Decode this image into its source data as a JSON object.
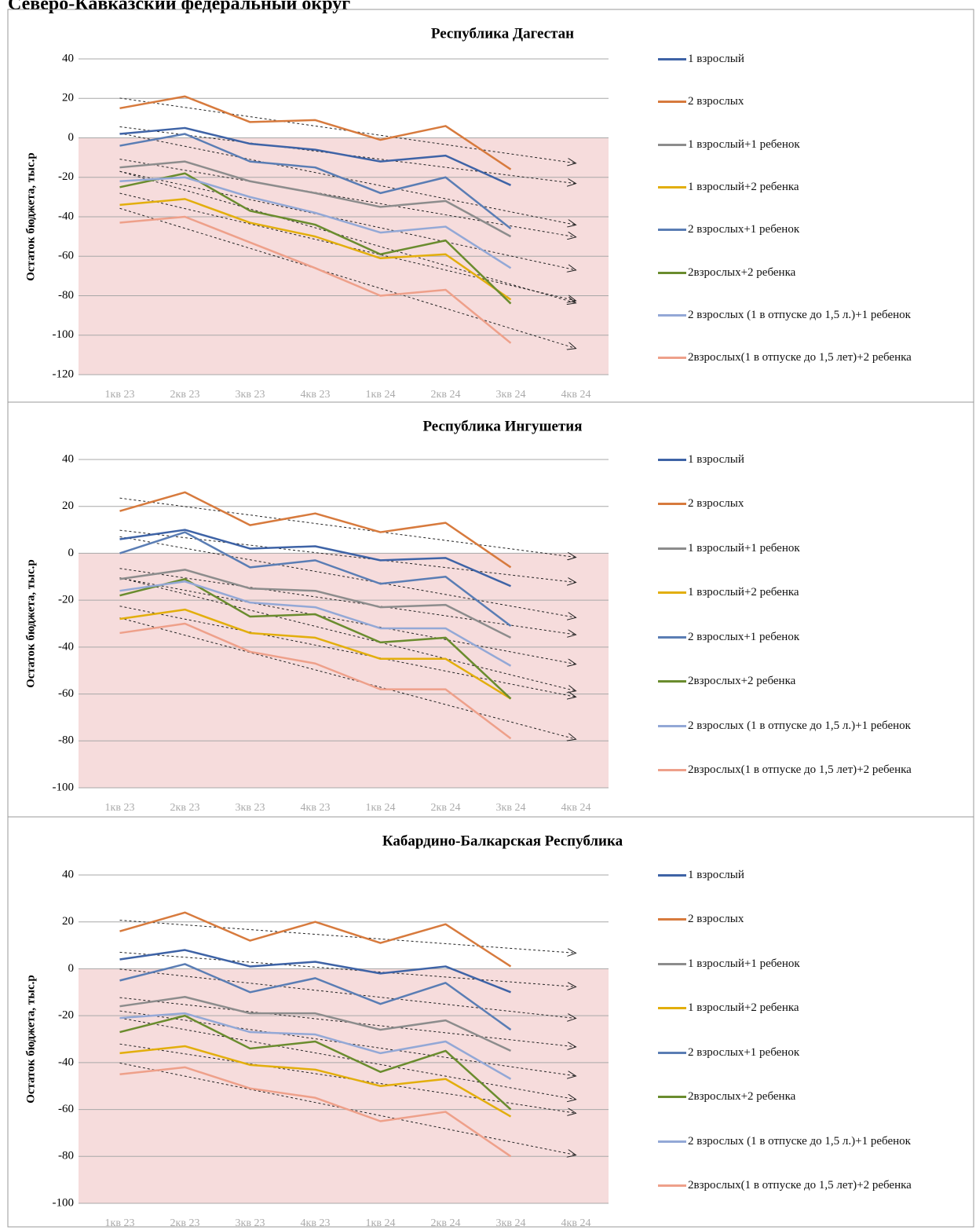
{
  "page_title": "Северо-Кавказский федеральный округ",
  "chart_data": [
    {
      "type": "line",
      "title": "Республика Дагестан",
      "y_label": "Остаток бюджета, тыс.р",
      "categories": [
        "1кв 23",
        "2кв 23",
        "3кв 23",
        "4кв 23",
        "1кв 24",
        "2кв 24",
        "3кв 24",
        "4кв 24"
      ],
      "ylim": [
        -120,
        40
      ],
      "yticks": [
        -120,
        -100,
        -80,
        -60,
        -40,
        -20,
        0,
        20,
        40
      ],
      "grid": true,
      "trendline": true,
      "negative_shade": "#f6dcdc",
      "legend": "right",
      "series": [
        {
          "name": "1 взрослый",
          "color": "#3e63a6",
          "values": [
            2,
            5,
            -3,
            -6,
            -12,
            -9,
            -24,
            null
          ]
        },
        {
          "name": "2 взрослых",
          "color": "#d77a3d",
          "values": [
            15,
            21,
            8,
            9,
            -1,
            6,
            -16,
            null
          ]
        },
        {
          "name": "1 взрослый+1 ребенок",
          "color": "#8c8c8c",
          "values": [
            -15,
            -12,
            -22,
            -28,
            -35,
            -32,
            -50,
            null
          ]
        },
        {
          "name": "1 взрослый+2 ребенка",
          "color": "#e2ae0c",
          "values": [
            -34,
            -31,
            -43,
            -50,
            -61,
            -59,
            -82,
            null
          ]
        },
        {
          "name": "2 взрослых+1 ребенок",
          "color": "#5a7db4",
          "values": [
            -4,
            2,
            -12,
            -15,
            -28,
            -20,
            -46,
            null
          ]
        },
        {
          "name": "2взрослых+2 ребенка",
          "color": "#6a8c2e",
          "values": [
            -25,
            -18,
            -37,
            -44,
            -59,
            -52,
            -84,
            null
          ]
        },
        {
          "name": "2 взрослых (1 в отпуске  до 1,5 л.)+1 ребенок",
          "color": "#93a8d6",
          "values": [
            -22,
            -20,
            -30,
            -38,
            -48,
            -45,
            -66,
            null
          ]
        },
        {
          "name": "2взрослых(1 в отпуске до 1,5 лет)+2 ребенка",
          "color": "#eea08a",
          "values": [
            -43,
            -40,
            -53,
            -66,
            -80,
            -77,
            -104,
            null
          ]
        }
      ]
    },
    {
      "type": "line",
      "title": "Республика Ингушетия",
      "y_label": "Остаток бюджета, тыс.р",
      "categories": [
        "1кв 23",
        "2кв 23",
        "3кв 23",
        "4кв 23",
        "1кв 24",
        "2кв 24",
        "3кв 24",
        "4кв 24"
      ],
      "ylim": [
        -100,
        40
      ],
      "yticks": [
        -100,
        -80,
        -60,
        -40,
        -20,
        0,
        20,
        40
      ],
      "grid": true,
      "trendline": true,
      "negative_shade": "#f6dcdc",
      "legend": "right",
      "series": [
        {
          "name": "1 взрослый",
          "color": "#3e63a6",
          "values": [
            6,
            10,
            2,
            3,
            -3,
            -2,
            -14,
            null
          ]
        },
        {
          "name": "2 взрослых",
          "color": "#d77a3d",
          "values": [
            18,
            26,
            12,
            17,
            9,
            13,
            -6,
            null
          ]
        },
        {
          "name": "1 взрослый+1 ребенок",
          "color": "#8c8c8c",
          "values": [
            -11,
            -7,
            -15,
            -16,
            -23,
            -22,
            -36,
            null
          ]
        },
        {
          "name": "1 взрослый+2 ребенка",
          "color": "#e2ae0c",
          "values": [
            -28,
            -24,
            -34,
            -36,
            -45,
            -45,
            -62,
            null
          ]
        },
        {
          "name": "2 взрослых+1 ребенок",
          "color": "#5a7db4",
          "values": [
            0,
            9,
            -6,
            -3,
            -13,
            -10,
            -31,
            null
          ]
        },
        {
          "name": "2взрослых+2 ребенка",
          "color": "#6a8c2e",
          "values": [
            -18,
            -11,
            -27,
            -26,
            -38,
            -36,
            -62,
            null
          ]
        },
        {
          "name": "2 взрослых (1 в отпуске  до 1,5 л.)+1 ребенок",
          "color": "#93a8d6",
          "values": [
            -16,
            -12,
            -21,
            -23,
            -32,
            -32,
            -48,
            null
          ]
        },
        {
          "name": "2взрослых(1 в отпуске до 1,5 лет)+2 ребенка",
          "color": "#eea08a",
          "values": [
            -34,
            -30,
            -42,
            -47,
            -58,
            -58,
            -79,
            null
          ]
        }
      ]
    },
    {
      "type": "line",
      "title": "Кабардино-Балкарская Республика",
      "y_label": "Остаток бюджета, тыс.р",
      "categories": [
        "1кв 23",
        "2кв 23",
        "3кв 23",
        "4кв 23",
        "1кв 24",
        "2кв 24",
        "3кв 24",
        "4кв 24"
      ],
      "ylim": [
        -100,
        40
      ],
      "yticks": [
        -100,
        -80,
        -60,
        -40,
        -20,
        0,
        20,
        40
      ],
      "grid": true,
      "trendline": true,
      "negative_shade": "#f6dcdc",
      "legend": "right",
      "series": [
        {
          "name": "1 взрослый",
          "color": "#3e63a6",
          "values": [
            4,
            8,
            1,
            3,
            -2,
            1,
            -10,
            null
          ]
        },
        {
          "name": "2 взрослых",
          "color": "#d77a3d",
          "values": [
            16,
            24,
            12,
            20,
            11,
            19,
            1,
            null
          ]
        },
        {
          "name": "1 взрослый+1 ребенок",
          "color": "#8c8c8c",
          "values": [
            -16,
            -12,
            -19,
            -19,
            -26,
            -22,
            -35,
            null
          ]
        },
        {
          "name": "1 взрослый+2 ребенка",
          "color": "#e2ae0c",
          "values": [
            -36,
            -33,
            -41,
            -43,
            -50,
            -47,
            -63,
            null
          ]
        },
        {
          "name": "2 взрослых+1 ребенок",
          "color": "#5a7db4",
          "values": [
            -5,
            2,
            -10,
            -4,
            -15,
            -6,
            -26,
            null
          ]
        },
        {
          "name": "2взрослых+2 ребенка",
          "color": "#6a8c2e",
          "values": [
            -27,
            -20,
            -34,
            -31,
            -44,
            -35,
            -60,
            null
          ]
        },
        {
          "name": "2 взрослых (1 в отпуске  до 1,5 л.)+1 ребенок",
          "color": "#93a8d6",
          "values": [
            -21,
            -19,
            -27,
            -28,
            -36,
            -31,
            -47,
            null
          ]
        },
        {
          "name": "2взрослых(1 в отпуске до 1,5 лет)+2 ребенка",
          "color": "#eea08a",
          "values": [
            -45,
            -42,
            -51,
            -55,
            -65,
            -61,
            -80,
            null
          ]
        }
      ]
    }
  ]
}
